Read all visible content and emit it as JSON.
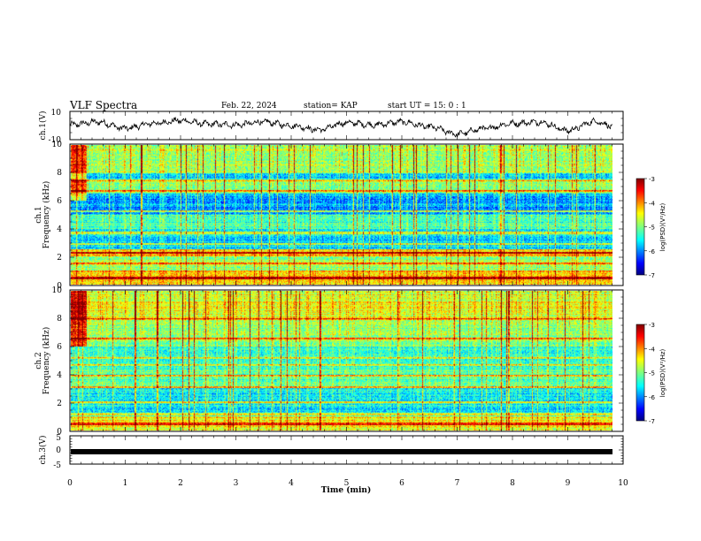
{
  "header": {
    "title": "VLF Spectra",
    "date": "Feb. 22, 2024",
    "station": "station= KAP",
    "start": "start  UT  =   15: 0   : 1"
  },
  "colors": {
    "background": "#ffffff",
    "axis": "#000000",
    "trace": "#000000"
  },
  "chart_data": [
    {
      "type": "line",
      "panel": "ch1-waveform",
      "ylabel": "ch.1(V)",
      "ylim": [
        -10,
        10
      ],
      "yticks": [
        "10",
        "-10"
      ],
      "xlim": [
        0,
        10
      ],
      "x_min": [
        0.0,
        0.5,
        1.0,
        1.5,
        2.0,
        2.5,
        3.0,
        3.5,
        4.0,
        4.5,
        5.0,
        5.5,
        6.0,
        6.5,
        7.0,
        7.5,
        8.0,
        8.5,
        9.0,
        9.5,
        9.8
      ],
      "y_V": [
        0.5,
        2.5,
        -2.0,
        1.5,
        3.5,
        1.0,
        0.5,
        2.5,
        0.0,
        -3.0,
        2.0,
        0.5,
        2.5,
        -1.0,
        -6.0,
        -2.0,
        1.5,
        2.5,
        -3.5,
        3.0,
        -0.5
      ]
    },
    {
      "type": "heatmap",
      "panel": "ch1-spectrogram",
      "ylabel": "ch.1",
      "ylabel2": "Frequency (kHz)",
      "ylim": [
        0,
        10
      ],
      "yticks": [
        "0",
        "2",
        "4",
        "6",
        "8",
        "10"
      ],
      "xlim": [
        0,
        9.8
      ],
      "description_levels_log10": {
        "0-1 kHz": -4.3,
        "1-2 kHz": -4.9,
        "2-2.5 kHz": -4.2,
        "2.5-4 kHz": -5.6,
        "4-5 kHz": -5.3,
        "5-6.5 kHz": -5.9,
        "6.5-7.5 kHz": -5.0,
        "7.5-8 kHz": -5.8,
        "8-10 kHz": -4.8
      },
      "colorbar": {
        "label": "log(PSD)(V²/Hz)",
        "ticks": [
          "-3",
          "-4",
          "-5",
          "-6",
          "-7"
        ],
        "range": [
          -7,
          -3
        ]
      }
    },
    {
      "type": "heatmap",
      "panel": "ch2-spectrogram",
      "ylabel": "ch.2",
      "ylabel2": "Frequency (kHz)",
      "ylim": [
        0,
        10
      ],
      "yticks": [
        "0",
        "2",
        "4",
        "6",
        "8",
        "10"
      ],
      "xlim": [
        0,
        9.8
      ],
      "description_levels_log10": {
        "0-1 kHz": -4.5,
        "1-3 kHz": -5.6,
        "3-4.5 kHz": -5.2,
        "4.5-6 kHz": -5.5,
        "6-8 kHz": -5.0,
        "8-10 kHz": -4.6
      },
      "colorbar": {
        "label": "log(PSD)(V²/Hz)",
        "ticks": [
          "-3",
          "-4",
          "-5",
          "-6",
          "-7"
        ],
        "range": [
          -7,
          -3
        ]
      }
    },
    {
      "type": "line",
      "panel": "ch3-waveform",
      "ylabel": "ch.3(V)",
      "ylim": [
        -5,
        5
      ],
      "yticks": [
        "5",
        "0",
        "-5"
      ],
      "xlim": [
        0,
        10
      ],
      "x_min": [
        0,
        9.8
      ],
      "y_V": [
        -2.0,
        -2.0
      ]
    }
  ],
  "x_axis": {
    "label": "Time  (min)",
    "ticks": [
      "0",
      "1",
      "2",
      "3",
      "4",
      "5",
      "6",
      "7",
      "8",
      "9",
      "10"
    ]
  }
}
